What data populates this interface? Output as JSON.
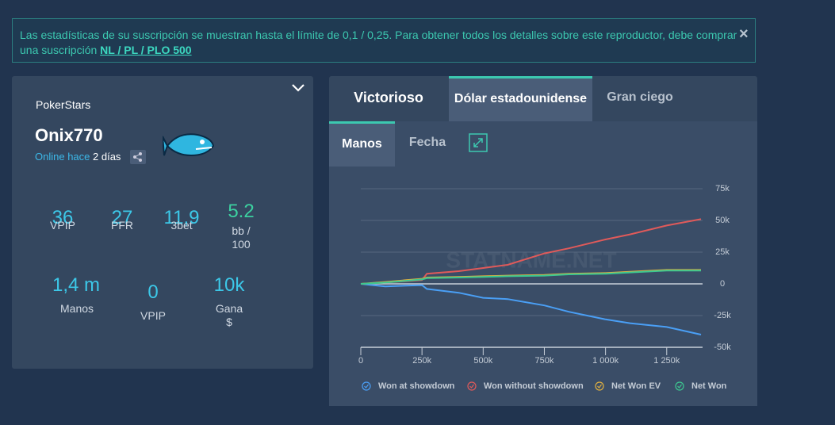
{
  "banner": {
    "text": "Las estadísticas de su suscripción se muestran hasta el límite de 0,1 / 0,25. Para obtener todos los detalles sobre este reproductor, debe comprar una suscripción",
    "link": "NL / PL / PLO 500",
    "close": "×"
  },
  "profile": {
    "site": "PokerStars",
    "name": "Onix770",
    "status": "Online hace",
    "ago": "2 días",
    "stats": [
      {
        "value": "36",
        "label": "VPIP"
      },
      {
        "value": "27",
        "label": "PFR"
      },
      {
        "value": "11,9",
        "label": "3bet"
      },
      {
        "value": "5.2",
        "label": "bb / 100"
      },
      {
        "value": "1,4 m",
        "label": "Manos"
      },
      {
        "value": "0",
        "label": "VPIP"
      },
      {
        "value": "10k",
        "label": "Gana $"
      }
    ]
  },
  "tabs": [
    "Victorioso",
    "Dólar estadounidense",
    "Gran ciego"
  ],
  "subtabs": [
    "Manos",
    "Fecha"
  ],
  "watermark": "STATNAME.NET",
  "chart_data": {
    "type": "line",
    "x": [
      0,
      100000,
      250000,
      270000,
      400000,
      500000,
      600000,
      750000,
      850000,
      1000000,
      1100000,
      1250000,
      1390000
    ],
    "xlim": [
      0,
      1390000
    ],
    "xticks": [
      0,
      {
        "value": 250000,
        "label": "250k"
      },
      {
        "value": 500000,
        "label": "500k"
      },
      {
        "value": 750000,
        "label": "750k"
      },
      {
        "value": 1000000,
        "label": "1 000k"
      },
      {
        "value": 1250000,
        "label": "1 250k"
      }
    ],
    "ylim": [
      -50000,
      75000
    ],
    "yticks": [
      {
        "value": 75000,
        "label": "75k"
      },
      {
        "value": 50000,
        "label": "50k"
      },
      {
        "value": 25000,
        "label": "25k"
      },
      0,
      {
        "value": -25000,
        "label": "-25k"
      },
      {
        "value": -50000,
        "label": "-50k"
      }
    ],
    "grid": true,
    "series": [
      {
        "name": "Won at showdown",
        "color": "#4a9ff5",
        "values": [
          0,
          -2000,
          -1000,
          -4000,
          -7000,
          -11000,
          -12000,
          -17000,
          -22000,
          -28000,
          -31000,
          -34000,
          -40000
        ]
      },
      {
        "name": "Won without showdown",
        "color": "#e05a5a",
        "values": [
          0,
          1000,
          3000,
          8000,
          10000,
          12500,
          15000,
          24000,
          28000,
          35000,
          39000,
          46000,
          51000
        ]
      },
      {
        "name": "Net Won EV",
        "color": "#e0b040",
        "values": [
          0,
          1500,
          4000,
          5000,
          5500,
          6000,
          6500,
          7000,
          8000,
          8500,
          9500,
          11000,
          11000
        ]
      },
      {
        "name": "Net Won",
        "color": "#3cc890",
        "values": [
          0,
          1000,
          3500,
          4500,
          5000,
          5500,
          6000,
          6500,
          7500,
          8000,
          9000,
          10500,
          10500
        ]
      }
    ]
  }
}
